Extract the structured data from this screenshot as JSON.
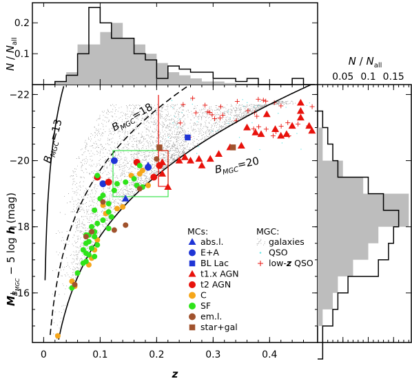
{
  "chart_data": {
    "type": "scatter",
    "panels": {
      "main": {
        "xlabel": "z",
        "ylabel": "M_{B_MGC} − 5 log h (mag)",
        "xlim": [
          -0.02,
          0.485
        ],
        "ylim": [
          -14.5,
          -22.3
        ],
        "xticks": [
          "0",
          "0.1",
          "0.2",
          "0.3",
          "0.4"
        ],
        "yticks": [
          "−22",
          "−20",
          "−18",
          "−16"
        ],
        "curve_labels": [
          "B_MGC=13",
          "B_MGC=18",
          "B_MGC=20"
        ],
        "magnitude_limits": [
          13,
          18,
          20
        ]
      },
      "top_histogram": {
        "ylabel": "N / N_all",
        "yticks": [
          "0.1",
          "0.2"
        ],
        "bin_width": 0.02,
        "bins_start": 0.02,
        "mc_counts_fraction": [
          0.01,
          0.03,
          0.1,
          0.25,
          0.2,
          0.15,
          0.15,
          0.1,
          0.08,
          0.02,
          0.06,
          0.05,
          0.04,
          0.04,
          0.02,
          0.02,
          0.01,
          0.02,
          0.0,
          0.0,
          0.0,
          0.02,
          0.0
        ],
        "mgc_galaxies_fraction": [
          0.01,
          0.04,
          0.13,
          0.13,
          0.17,
          0.2,
          0.15,
          0.13,
          0.1,
          0.07,
          0.04,
          0.03,
          0.02,
          0.01,
          0.01,
          0.005,
          0.0,
          0.0,
          0.0,
          0.0,
          0.0,
          0.0,
          0.0
        ]
      },
      "right_histogram": {
        "xlabel": "N / N_all",
        "xticks": [
          "0.05",
          "0.1",
          "0.15"
        ],
        "bin_width_mag": 0.5,
        "bins_start_mag": -21.5,
        "mc_counts_fraction": [
          0.01,
          0.02,
          0.03,
          0.04,
          0.1,
          0.13,
          0.16,
          0.15,
          0.14,
          0.12,
          0.06,
          0.04,
          0.03,
          0.01,
          0.01
        ],
        "mgc_galaxies_fraction": [
          0.0,
          0.01,
          0.01,
          0.05,
          0.09,
          0.18,
          0.18,
          0.12,
          0.1,
          0.07,
          0.04,
          0.03,
          0.01,
          0.0,
          0.0
        ]
      }
    },
    "legend_mc": {
      "title": "MCs:",
      "entries": [
        {
          "label": "abs.l.",
          "marker": "triangle",
          "color": "#1f35d6"
        },
        {
          "label": "E+A",
          "marker": "circle",
          "color": "#1f35d6"
        },
        {
          "label": "BL Lac",
          "marker": "square",
          "color": "#1f35d6"
        },
        {
          "label": "t1.x AGN",
          "marker": "triangle",
          "color": "#e8120c"
        },
        {
          "label": "t2 AGN",
          "marker": "circle",
          "color": "#e8120c"
        },
        {
          "label": "C",
          "marker": "circle",
          "color": "#f6a61a"
        },
        {
          "label": "SF",
          "marker": "circle",
          "color": "#2ee31a"
        },
        {
          "label": "em.l.",
          "marker": "circle",
          "color": "#a0522d"
        },
        {
          "label": "star+gal",
          "marker": "square",
          "color": "#a0522d"
        }
      ]
    },
    "legend_mgc": {
      "title": "MGC:",
      "entries": [
        {
          "label": "galaxies",
          "marker": "dots",
          "color": "#9a9a9a"
        },
        {
          "label": "QSO",
          "marker": "dot",
          "color": "#6fe6e6"
        },
        {
          "label": "low-z QSO",
          "marker": "plus",
          "color": "#e8120c"
        }
      ]
    },
    "series": [
      {
        "name": "abs.l.",
        "marker": "triangle",
        "color": "#1f35d6",
        "points": [
          [
            0.145,
            -18.85
          ],
          [
            0.185,
            -19.85
          ]
        ]
      },
      {
        "name": "E+A",
        "marker": "circle",
        "color": "#1f35d6",
        "points": [
          [
            0.125,
            -20.0
          ],
          [
            0.185,
            -19.8
          ],
          [
            0.105,
            -19.3
          ]
        ]
      },
      {
        "name": "BL Lac",
        "marker": "square",
        "color": "#1f35d6",
        "points": [
          [
            0.255,
            -20.7
          ]
        ]
      },
      {
        "name": "t1.x AGN",
        "marker": "triangle",
        "color": "#e8120c",
        "points": [
          [
            0.21,
            -19.95
          ],
          [
            0.24,
            -20.0
          ],
          [
            0.25,
            -20.1
          ],
          [
            0.26,
            -20.0
          ],
          [
            0.275,
            -20.05
          ],
          [
            0.31,
            -20.2
          ],
          [
            0.33,
            -20.4
          ],
          [
            0.35,
            -20.45
          ],
          [
            0.36,
            -21.0
          ],
          [
            0.375,
            -20.85
          ],
          [
            0.385,
            -20.8
          ],
          [
            0.395,
            -21.4
          ],
          [
            0.41,
            -20.95
          ],
          [
            0.42,
            -20.75
          ],
          [
            0.43,
            -20.8
          ],
          [
            0.44,
            -21.05
          ],
          [
            0.455,
            -21.3
          ],
          [
            0.47,
            -21.05
          ],
          [
            0.475,
            -20.9
          ],
          [
            0.455,
            -21.5
          ],
          [
            0.455,
            -21.75
          ],
          [
            0.295,
            -20.05
          ],
          [
            0.28,
            -19.85
          ],
          [
            0.22,
            -19.2
          ],
          [
            0.21,
            -19.6
          ]
        ]
      },
      {
        "name": "t2 AGN",
        "marker": "circle",
        "color": "#e8120c",
        "points": [
          [
            0.165,
            -19.95
          ],
          [
            0.195,
            -19.5
          ],
          [
            0.095,
            -19.5
          ],
          [
            0.115,
            -19.35
          ],
          [
            0.205,
            -19.85
          ]
        ]
      },
      {
        "name": "C",
        "marker": "circle",
        "color": "#f6a61a",
        "points": [
          [
            0.175,
            -19.7
          ],
          [
            0.17,
            -19.6
          ],
          [
            0.155,
            -19.55
          ],
          [
            0.185,
            -19.25
          ],
          [
            0.105,
            -18.65
          ],
          [
            0.14,
            -18.6
          ],
          [
            0.13,
            -18.55
          ],
          [
            0.11,
            -18.4
          ],
          [
            0.095,
            -17.6
          ],
          [
            0.09,
            -17.3
          ],
          [
            0.085,
            -17.05
          ],
          [
            0.08,
            -16.85
          ],
          [
            0.05,
            -16.35
          ],
          [
            0.055,
            -16.2
          ],
          [
            0.025,
            -14.7
          ]
        ]
      },
      {
        "name": "SF",
        "marker": "circle",
        "color": "#2ee31a",
        "points": [
          [
            0.17,
            -19.85
          ],
          [
            0.16,
            -19.45
          ],
          [
            0.145,
            -19.35
          ],
          [
            0.13,
            -19.3
          ],
          [
            0.175,
            -19.2
          ],
          [
            0.125,
            -19.1
          ],
          [
            0.105,
            -18.95
          ],
          [
            0.1,
            -18.85
          ],
          [
            0.115,
            -18.7
          ],
          [
            0.09,
            -18.5
          ],
          [
            0.115,
            -18.45
          ],
          [
            0.12,
            -18.3
          ],
          [
            0.105,
            -18.2
          ],
          [
            0.095,
            -18.1
          ],
          [
            0.085,
            -18.0
          ],
          [
            0.115,
            -17.95
          ],
          [
            0.09,
            -17.85
          ],
          [
            0.08,
            -17.75
          ],
          [
            0.075,
            -17.75
          ],
          [
            0.09,
            -17.7
          ],
          [
            0.08,
            -17.55
          ],
          [
            0.075,
            -17.5
          ],
          [
            0.095,
            -17.45
          ],
          [
            0.085,
            -17.35
          ],
          [
            0.07,
            -17.3
          ],
          [
            0.075,
            -17.2
          ],
          [
            0.08,
            -17.15
          ],
          [
            0.09,
            -17.1
          ],
          [
            0.075,
            -16.95
          ],
          [
            0.07,
            -16.9
          ],
          [
            0.06,
            -16.6
          ],
          [
            0.05,
            -16.15
          ],
          [
            0.095,
            -19.55
          ],
          [
            0.165,
            -19.25
          ]
        ]
      },
      {
        "name": "em.l.",
        "marker": "circle",
        "color": "#a0522d",
        "points": [
          [
            0.2,
            -20.05
          ],
          [
            0.17,
            -19.15
          ],
          [
            0.145,
            -18.05
          ],
          [
            0.105,
            -18.75
          ],
          [
            0.125,
            -17.9
          ],
          [
            0.075,
            -17.7
          ],
          [
            0.055,
            -16.25
          ],
          [
            0.085,
            -17.85
          ]
        ]
      },
      {
        "name": "star+gal",
        "marker": "square",
        "color": "#a0522d",
        "points": [
          [
            0.205,
            -20.4
          ],
          [
            0.335,
            -20.4
          ]
        ]
      }
    ]
  }
}
